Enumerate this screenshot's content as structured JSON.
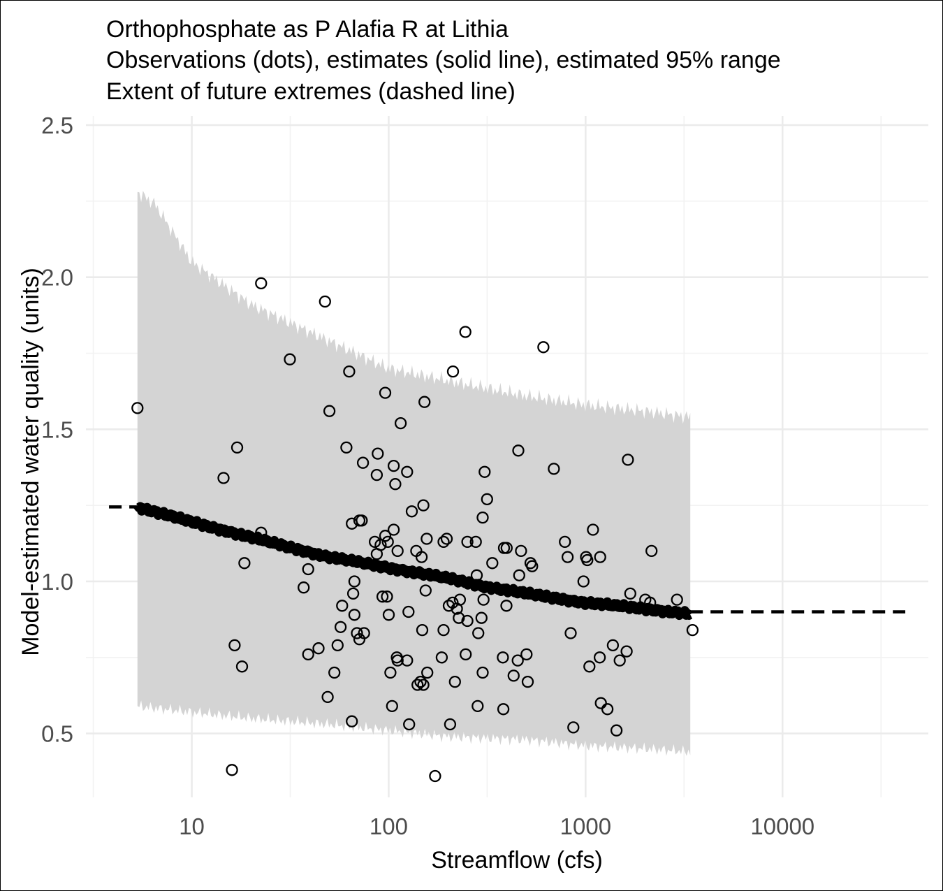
{
  "chart_data": {
    "type": "scatter",
    "title_lines": [
      "Orthophosphate as P Alafia R at Lithia",
      "Observations (dots), estimates (solid line), estimated 95% range",
      "Extent of future extremes (dashed line)"
    ],
    "xlabel": "Streamflow (cfs)",
    "ylabel": "Model-estimated water quality (units)",
    "x_scale": "log",
    "xlim": [
      2.9,
      55000
    ],
    "ylim": [
      0.29,
      2.53
    ],
    "x_ticks": [
      10,
      100,
      1000,
      10000
    ],
    "x_tick_labels": [
      "10",
      "100",
      "1000",
      "10000"
    ],
    "y_ticks": [
      0.5,
      1.0,
      1.5,
      2.0,
      2.5
    ],
    "y_tick_labels": [
      "0.5",
      "1.0",
      "1.5",
      "2.0",
      "2.5"
    ],
    "grid": true,
    "band_color": "#d4d4d4",
    "line_color": "#000000",
    "observations": [
      [
        5.3,
        1.57
      ],
      [
        22.5,
        1.98
      ],
      [
        47.5,
        1.92
      ],
      [
        31.5,
        1.73
      ],
      [
        63,
        1.69
      ],
      [
        50,
        1.56
      ],
      [
        96,
        1.62
      ],
      [
        115,
        1.52
      ],
      [
        152,
        1.59
      ],
      [
        17,
        1.44
      ],
      [
        14.5,
        1.34
      ],
      [
        61,
        1.44
      ],
      [
        88,
        1.42
      ],
      [
        74,
        1.39
      ],
      [
        106,
        1.38
      ],
      [
        108,
        1.32
      ],
      [
        87,
        1.35
      ],
      [
        124,
        1.36
      ],
      [
        22.5,
        1.16
      ],
      [
        18.5,
        1.06
      ],
      [
        37,
        0.98
      ],
      [
        39,
        1.04
      ],
      [
        71,
        1.2
      ],
      [
        73,
        1.2
      ],
      [
        65,
        1.19
      ],
      [
        150,
        1.25
      ],
      [
        131,
        1.23
      ],
      [
        85,
        1.13
      ],
      [
        96,
        1.15
      ],
      [
        99,
        1.13
      ],
      [
        106,
        1.17
      ],
      [
        87,
        1.09
      ],
      [
        91,
        1.12
      ],
      [
        111,
        1.1
      ],
      [
        138,
        1.1
      ],
      [
        147,
        1.08
      ],
      [
        156,
        1.14
      ],
      [
        190,
        1.13
      ],
      [
        197,
        1.14
      ],
      [
        212,
        1.69
      ],
      [
        245,
        1.82
      ],
      [
        251,
        1.13
      ],
      [
        300,
        1.21
      ],
      [
        307,
        1.36
      ],
      [
        316,
        1.27
      ],
      [
        336,
        1.06
      ],
      [
        277,
        1.13
      ],
      [
        280,
        1.02
      ],
      [
        385,
        1.11
      ],
      [
        397,
        1.11
      ],
      [
        455,
        1.43
      ],
      [
        470,
        1.1
      ],
      [
        525,
        1.06
      ],
      [
        535,
        1.05
      ],
      [
        610,
        1.77
      ],
      [
        690,
        1.37
      ],
      [
        785,
        1.13
      ],
      [
        810,
        1.08
      ],
      [
        975,
        1.0
      ],
      [
        1005,
        1.08
      ],
      [
        1020,
        1.07
      ],
      [
        1090,
        1.17
      ],
      [
        1185,
        1.08
      ],
      [
        1640,
        1.4
      ],
      [
        2160,
        1.1
      ],
      [
        93,
        0.95
      ],
      [
        98,
        0.95
      ],
      [
        100,
        0.89
      ],
      [
        58,
        0.92
      ],
      [
        57,
        0.85
      ],
      [
        66,
        0.96
      ],
      [
        67,
        1.0
      ],
      [
        69,
        0.83
      ],
      [
        71,
        0.81
      ],
      [
        75,
        0.83
      ],
      [
        67,
        0.89
      ],
      [
        55,
        0.79
      ],
      [
        44,
        0.78
      ],
      [
        39,
        0.76
      ],
      [
        16.5,
        0.79
      ],
      [
        18,
        0.72
      ],
      [
        53,
        0.7
      ],
      [
        49,
        0.62
      ],
      [
        65,
        0.54
      ],
      [
        104,
        0.59
      ],
      [
        102,
        0.7
      ],
      [
        110,
        0.75
      ],
      [
        111,
        0.74
      ],
      [
        124,
        0.74
      ],
      [
        126,
        0.9
      ],
      [
        127,
        0.53
      ],
      [
        140,
        0.66
      ],
      [
        145,
        0.67
      ],
      [
        148,
        0.84
      ],
      [
        150,
        0.66
      ],
      [
        154,
        0.97
      ],
      [
        157,
        0.7
      ],
      [
        186,
        0.75
      ],
      [
        190,
        0.84
      ],
      [
        202,
        0.92
      ],
      [
        205,
        0.53
      ],
      [
        211,
        0.93
      ],
      [
        217,
        0.67
      ],
      [
        222,
        0.91
      ],
      [
        227,
        0.88
      ],
      [
        230,
        0.94
      ],
      [
        246,
        0.76
      ],
      [
        251,
        0.87
      ],
      [
        283,
        0.59
      ],
      [
        285,
        0.83
      ],
      [
        296,
        0.88
      ],
      [
        300,
        0.7
      ],
      [
        303,
        0.94
      ],
      [
        396,
        0.92
      ],
      [
        380,
        0.75
      ],
      [
        382,
        0.58
      ],
      [
        431,
        0.69
      ],
      [
        452,
        0.74
      ],
      [
        460,
        1.02
      ],
      [
        501,
        0.76
      ],
      [
        508,
        0.67
      ],
      [
        866,
        0.52
      ],
      [
        1045,
        0.72
      ],
      [
        1180,
        0.75
      ],
      [
        1195,
        0.6
      ],
      [
        1290,
        0.58
      ],
      [
        1375,
        0.79
      ],
      [
        1435,
        0.51
      ],
      [
        1490,
        0.74
      ],
      [
        1615,
        0.77
      ],
      [
        1685,
        0.96
      ],
      [
        2010,
        0.94
      ],
      [
        2125,
        0.93
      ],
      [
        2910,
        0.94
      ],
      [
        3490,
        0.84
      ],
      [
        16,
        0.38
      ],
      [
        172,
        0.36
      ],
      [
        840,
        0.83
      ]
    ],
    "estimate_line": {
      "x": [
        5.3,
        10,
        20,
        30,
        50,
        100,
        200,
        300,
        500,
        1000,
        2000,
        3400
      ],
      "y": [
        1.245,
        1.195,
        1.145,
        1.115,
        1.08,
        1.045,
        1.01,
        0.985,
        0.96,
        0.93,
        0.91,
        0.893
      ]
    },
    "band_upper": {
      "x": [
        5.3,
        6.5,
        10,
        20,
        50,
        100,
        200,
        500,
        1000,
        2000,
        3400
      ],
      "y": [
        2.28,
        2.24,
        2.05,
        1.91,
        1.79,
        1.7,
        1.66,
        1.61,
        1.58,
        1.56,
        1.54
      ]
    },
    "band_lower": {
      "x": [
        5.3,
        10,
        20,
        50,
        100,
        200,
        500,
        1000,
        2000,
        3400
      ],
      "y": [
        0.59,
        0.57,
        0.55,
        0.53,
        0.51,
        0.49,
        0.48,
        0.46,
        0.45,
        0.44
      ]
    },
    "extreme_dashed_low": {
      "x": [
        3.8,
        5.3
      ],
      "y": [
        1.245,
        1.245
      ]
    },
    "extreme_dashed_high": {
      "x": [
        3400,
        42000
      ],
      "y": [
        0.9,
        0.9
      ]
    }
  }
}
